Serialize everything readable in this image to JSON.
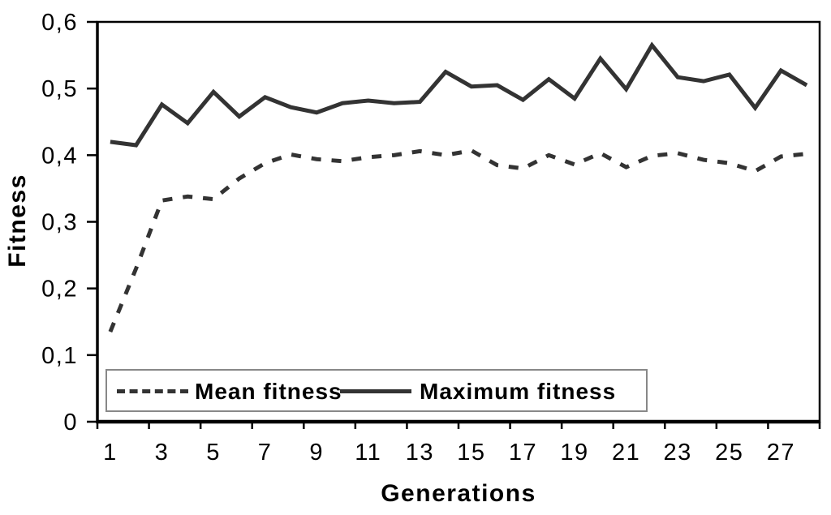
{
  "chart_data": {
    "type": "line",
    "title": "",
    "xlabel": "Generations",
    "ylabel": "Fitness",
    "x": [
      1,
      2,
      3,
      4,
      5,
      6,
      7,
      8,
      9,
      10,
      11,
      12,
      13,
      14,
      15,
      16,
      17,
      18,
      19,
      20,
      21,
      22,
      23,
      24,
      25,
      26,
      27,
      28
    ],
    "x_tick_labels": [
      "1",
      "3",
      "5",
      "7",
      "9",
      "11",
      "13",
      "15",
      "17",
      "19",
      "21",
      "23",
      "25",
      "27"
    ],
    "y_ticks": [
      0,
      0.1,
      0.2,
      0.3,
      0.4,
      0.5,
      0.6
    ],
    "y_tick_labels": [
      "0",
      "0,1",
      "0,2",
      "0,3",
      "0,4",
      "0,5",
      "0,6"
    ],
    "ylim": [
      0,
      0.6
    ],
    "grid": false,
    "legend_position": "inside-bottom-left",
    "line_color": "#333333",
    "series": [
      {
        "name": "Mean fitness",
        "style": "dashed",
        "values": [
          0.135,
          0.23,
          0.332,
          0.338,
          0.334,
          0.365,
          0.388,
          0.401,
          0.394,
          0.391,
          0.397,
          0.4,
          0.406,
          0.4,
          0.407,
          0.385,
          0.38,
          0.4,
          0.386,
          0.403,
          0.382,
          0.399,
          0.403,
          0.393,
          0.388,
          0.376,
          0.398,
          0.402
        ]
      },
      {
        "name": "Maximum fitness",
        "style": "solid",
        "values": [
          0.42,
          0.415,
          0.476,
          0.448,
          0.495,
          0.458,
          0.487,
          0.472,
          0.464,
          0.478,
          0.482,
          0.478,
          0.48,
          0.525,
          0.503,
          0.505,
          0.483,
          0.514,
          0.485,
          0.545,
          0.499,
          0.565,
          0.517,
          0.511,
          0.521,
          0.471,
          0.527,
          0.505
        ]
      }
    ]
  }
}
